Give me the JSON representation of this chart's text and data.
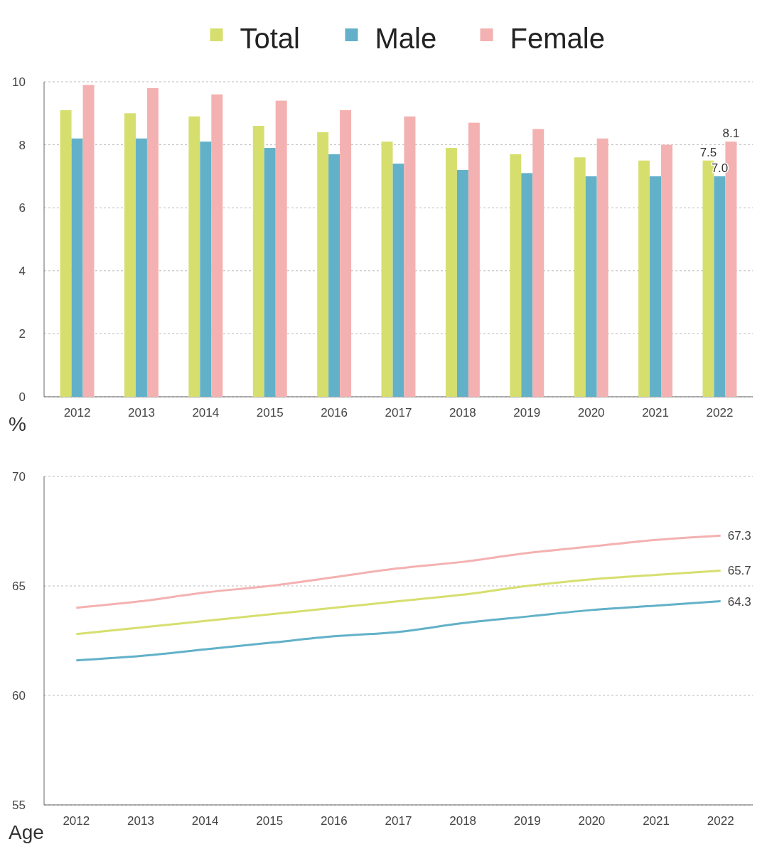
{
  "chart_data": [
    {
      "type": "bar",
      "ylabel": "%",
      "legend": "top",
      "grid": "y",
      "ylim": [
        0,
        10
      ],
      "yticks": [
        0,
        2,
        4,
        6,
        8,
        10
      ],
      "categories": [
        "2012",
        "2013",
        "2014",
        "2015",
        "2016",
        "2017",
        "2018",
        "2019",
        "2020",
        "2021",
        "2022"
      ],
      "series": [
        {
          "name": "Total",
          "color": "#d6df6e",
          "values": [
            9.1,
            9.0,
            8.9,
            8.6,
            8.4,
            8.1,
            7.9,
            7.7,
            7.6,
            7.5,
            7.5
          ],
          "value_labels": [
            null,
            null,
            null,
            null,
            null,
            null,
            null,
            null,
            null,
            null,
            "7.5"
          ]
        },
        {
          "name": "Male",
          "color": "#62b1c8",
          "values": [
            8.2,
            8.2,
            8.1,
            7.9,
            7.7,
            7.4,
            7.2,
            7.1,
            7.0,
            7.0,
            7.0
          ],
          "value_labels": [
            null,
            null,
            null,
            null,
            null,
            null,
            null,
            null,
            null,
            null,
            "7.0"
          ]
        },
        {
          "name": "Female",
          "color": "#f4b1b1",
          "values": [
            9.9,
            9.8,
            9.6,
            9.4,
            9.1,
            8.9,
            8.7,
            8.5,
            8.2,
            8.0,
            8.1
          ],
          "value_labels": [
            null,
            null,
            null,
            null,
            null,
            null,
            null,
            null,
            null,
            null,
            "8.1"
          ]
        }
      ]
    },
    {
      "type": "line",
      "ylabel": "Age",
      "grid": "y",
      "marker": "none",
      "ylim": [
        55,
        70
      ],
      "yticks": [
        55,
        60,
        65,
        70
      ],
      "categories": [
        "2012",
        "2013",
        "2014",
        "2015",
        "2016",
        "2017",
        "2018",
        "2019",
        "2020",
        "2021",
        "2022"
      ],
      "series": [
        {
          "color": "#f4b1b1",
          "values": [
            64.0,
            64.3,
            64.7,
            65.0,
            65.4,
            65.8,
            66.1,
            66.5,
            66.8,
            67.1,
            67.3
          ],
          "value_labels": [
            null,
            null,
            null,
            null,
            null,
            null,
            null,
            null,
            null,
            null,
            "67.3"
          ]
        },
        {
          "color": "#d6df6e",
          "values": [
            62.8,
            63.1,
            63.4,
            63.7,
            64.0,
            64.3,
            64.6,
            65.0,
            65.3,
            65.5,
            65.7
          ],
          "value_labels": [
            null,
            null,
            null,
            null,
            null,
            null,
            null,
            null,
            null,
            null,
            "65.7"
          ]
        },
        {
          "color": "#62b1c8",
          "values": [
            61.6,
            61.8,
            62.1,
            62.4,
            62.7,
            62.9,
            63.3,
            63.6,
            63.9,
            64.1,
            64.3
          ],
          "value_labels": [
            null,
            null,
            null,
            null,
            null,
            null,
            null,
            null,
            null,
            null,
            "64.3"
          ]
        }
      ]
    }
  ]
}
